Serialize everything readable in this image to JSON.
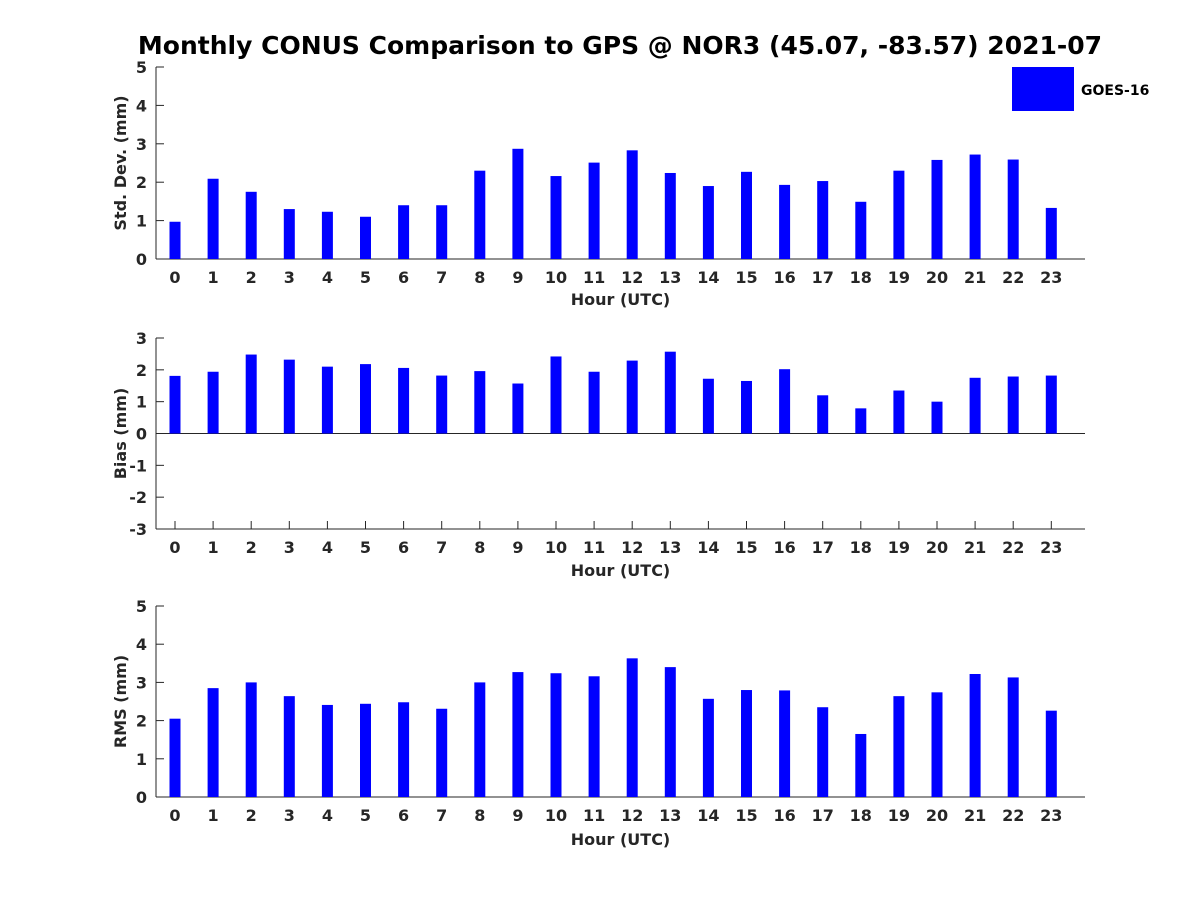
{
  "figure": {
    "title": "Monthly CONUS Comparison to GPS @ NOR3 (45.07, -83.57) 2021-07",
    "bar_color": "#0000ff",
    "legend": {
      "label": "GOES-16",
      "placement": "top-right"
    }
  },
  "chart_data": [
    {
      "type": "bar",
      "xlabel": "Hour (UTC)",
      "ylabel": "Std. Dev. (mm)",
      "ylim": [
        0,
        5
      ],
      "yticks": [
        "0",
        "1",
        "2",
        "3",
        "4",
        "5"
      ],
      "categories": [
        "0",
        "1",
        "2",
        "3",
        "4",
        "5",
        "6",
        "7",
        "8",
        "9",
        "10",
        "11",
        "12",
        "13",
        "14",
        "15",
        "16",
        "17",
        "18",
        "19",
        "20",
        "21",
        "22",
        "23"
      ],
      "series": [
        {
          "name": "GOES-16",
          "values": [
            0.97,
            2.09,
            1.75,
            1.3,
            1.23,
            1.1,
            1.4,
            1.4,
            2.3,
            2.87,
            2.16,
            2.51,
            2.83,
            2.24,
            1.9,
            2.27,
            1.93,
            2.03,
            1.49,
            2.3,
            2.58,
            2.72,
            2.59,
            1.33
          ]
        }
      ]
    },
    {
      "type": "bar",
      "xlabel": "Hour (UTC)",
      "ylabel": "Bias (mm)",
      "ylim": [
        -3,
        3
      ],
      "yticks": [
        "-3",
        "-2",
        "-1",
        "0",
        "1",
        "2",
        "3"
      ],
      "categories": [
        "0",
        "1",
        "2",
        "3",
        "4",
        "5",
        "6",
        "7",
        "8",
        "9",
        "10",
        "11",
        "12",
        "13",
        "14",
        "15",
        "16",
        "17",
        "18",
        "19",
        "20",
        "21",
        "22",
        "23"
      ],
      "series": [
        {
          "name": "GOES-16",
          "values": [
            1.81,
            1.94,
            2.48,
            2.32,
            2.1,
            2.18,
            2.06,
            1.82,
            1.96,
            1.57,
            2.42,
            1.94,
            2.29,
            2.57,
            1.72,
            1.65,
            2.02,
            1.2,
            0.79,
            1.35,
            1.0,
            1.75,
            1.79,
            1.82
          ]
        }
      ]
    },
    {
      "type": "bar",
      "xlabel": "Hour (UTC)",
      "ylabel": "RMS (mm)",
      "ylim": [
        0,
        5
      ],
      "yticks": [
        "0",
        "1",
        "2",
        "3",
        "4",
        "5"
      ],
      "categories": [
        "0",
        "1",
        "2",
        "3",
        "4",
        "5",
        "6",
        "7",
        "8",
        "9",
        "10",
        "11",
        "12",
        "13",
        "14",
        "15",
        "16",
        "17",
        "18",
        "19",
        "20",
        "21",
        "22",
        "23"
      ],
      "series": [
        {
          "name": "GOES-16",
          "values": [
            2.05,
            2.85,
            3.0,
            2.64,
            2.41,
            2.44,
            2.48,
            2.31,
            3.0,
            3.27,
            3.24,
            3.16,
            3.63,
            3.4,
            2.57,
            2.8,
            2.79,
            2.35,
            1.65,
            2.64,
            2.74,
            3.22,
            3.13,
            2.26
          ]
        }
      ]
    }
  ]
}
